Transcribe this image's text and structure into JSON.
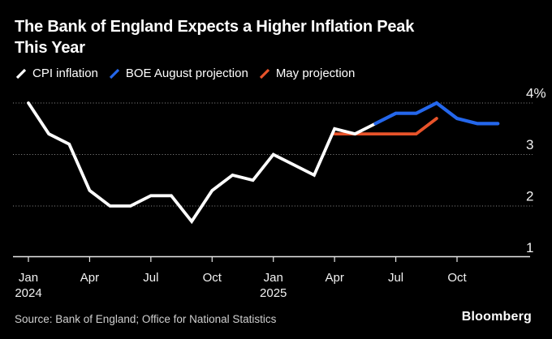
{
  "title": {
    "line1": "The Bank of England Expects a Higher Inflation Peak",
    "line2": "This Year"
  },
  "legend": [
    {
      "label": "CPI inflation",
      "color": "#ffffff",
      "icon": "line-swatch"
    },
    {
      "label": "BOE August projection",
      "color": "#2467ec",
      "icon": "line-swatch"
    },
    {
      "label": "May projection",
      "color": "#e8532a",
      "icon": "line-swatch"
    }
  ],
  "footer": {
    "source": "Source: Bank of England; Office for National Statistics",
    "brand": "Bloomberg"
  },
  "colors": {
    "background": "#000000",
    "grid": "#8c8c8c",
    "axis": "#e8e8e8",
    "tick_text": "#f2f2f2",
    "cpi_line": "#ffffff",
    "august_projection_line": "#2467ec",
    "may_projection_line": "#e8532a"
  },
  "chart_data": {
    "type": "line",
    "title": "The Bank of England Expects a Higher Inflation Peak This Year",
    "x_unit": "months since Jan 2024",
    "ylabel": "%",
    "ylim": [
      1,
      4.3
    ],
    "grid": "horizontal dotted",
    "legend_position": "top",
    "series": [
      {
        "name": "May projection",
        "color": "#e8532a",
        "start_month": 15,
        "months": [
          "Apr 2025",
          "May 2025",
          "Jun 2025",
          "Jul 2025",
          "Aug 2025",
          "Sep 2025"
        ],
        "values": [
          3.4,
          3.4,
          3.4,
          3.4,
          3.4,
          3.7
        ]
      },
      {
        "name": "CPI inflation",
        "color": "#ffffff",
        "start_month": 0,
        "months": [
          "Jan 2024",
          "Feb 2024",
          "Mar 2024",
          "Apr 2024",
          "May 2024",
          "Jun 2024",
          "Jul 2024",
          "Aug 2024",
          "Sep 2024",
          "Oct 2024",
          "Nov 2024",
          "Dec 2024",
          "Jan 2025",
          "Feb 2025",
          "Mar 2025",
          "Apr 2025",
          "May 2025",
          "Jun 2025"
        ],
        "values": [
          4.0,
          3.4,
          3.2,
          2.3,
          2.0,
          2.0,
          2.2,
          2.2,
          1.7,
          2.3,
          2.6,
          2.5,
          3.0,
          2.8,
          2.6,
          3.5,
          3.4,
          3.6
        ]
      },
      {
        "name": "BOE August projection",
        "color": "#2467ec",
        "start_month": 17,
        "months": [
          "Jun 2025",
          "Jul 2025",
          "Aug 2025",
          "Sep 2025",
          "Oct 2025",
          "Nov 2025",
          "Dec 2025"
        ],
        "values": [
          3.6,
          3.8,
          3.8,
          4.0,
          3.7,
          3.6,
          3.6
        ]
      }
    ],
    "y_ticks": [
      {
        "value": 4,
        "label": "4%"
      },
      {
        "value": 3,
        "label": "3"
      },
      {
        "value": 2,
        "label": "2"
      },
      {
        "value": 1,
        "label": "1"
      }
    ],
    "x_ticks": [
      {
        "month": 0,
        "label": "Jan",
        "sub": "2024"
      },
      {
        "month": 3,
        "label": "Apr"
      },
      {
        "month": 6,
        "label": "Jul"
      },
      {
        "month": 9,
        "label": "Oct"
      },
      {
        "month": 12,
        "label": "Jan",
        "sub": "2025"
      },
      {
        "month": 15,
        "label": "Apr"
      },
      {
        "month": 18,
        "label": "Jul"
      },
      {
        "month": 21,
        "label": "Oct"
      }
    ]
  }
}
